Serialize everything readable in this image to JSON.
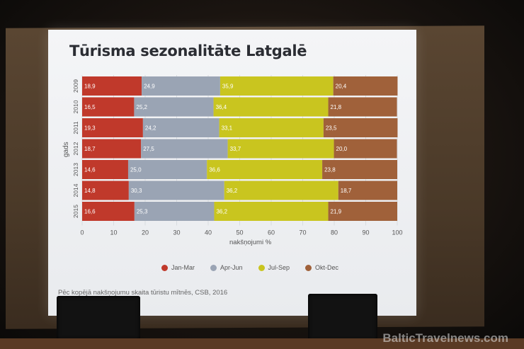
{
  "title": "Tūrisma sezonalitāte Latgalē",
  "source_note": "Pēc kopējā nakšņojumu skaita tūristu mītnēs, CSB, 2016",
  "watermark": "BalticTravelnews.com",
  "chart_data": {
    "type": "bar",
    "orientation": "horizontal",
    "stacked": true,
    "categories": [
      "2009",
      "2010",
      "2011",
      "2012",
      "2013",
      "2014",
      "2015"
    ],
    "series": [
      {
        "name": "Jan-Mar",
        "color": "#c0392b",
        "values": [
          18.9,
          16.5,
          19.3,
          18.7,
          14.6,
          14.8,
          16.6
        ],
        "labels": [
          "18,9",
          "16,5",
          "19,3",
          "18,7",
          "14,6",
          "14,8",
          "16,6"
        ]
      },
      {
        "name": "Apr-Jun",
        "color": "#9aa4b4",
        "values": [
          24.9,
          25.2,
          24.2,
          27.5,
          25.0,
          30.3,
          25.3
        ],
        "labels": [
          "24,9",
          "25,2",
          "24,2",
          "27,5",
          "25,0",
          "30,3",
          "25,3"
        ]
      },
      {
        "name": "Jul-Sep",
        "color": "#c9c51f",
        "values": [
          35.9,
          36.4,
          33.1,
          33.7,
          36.6,
          36.2,
          36.2
        ],
        "labels": [
          "35,9",
          "36,4",
          "33,1",
          "33,7",
          "36,6",
          "36,2",
          "36,2"
        ]
      },
      {
        "name": "Okt-Dec",
        "color": "#a0613a",
        "values": [
          20.4,
          21.8,
          23.5,
          20.0,
          23.8,
          18.7,
          21.9
        ],
        "labels": [
          "20,4",
          "21,8",
          "23,5",
          "20,0",
          "23,8",
          "18,7",
          "21,9"
        ]
      }
    ],
    "xlabel": "nakšņojumi %",
    "ylabel": "gads",
    "xlim": [
      0,
      100
    ],
    "xticks": [
      "0",
      "10",
      "20",
      "30",
      "40",
      "50",
      "60",
      "70",
      "80",
      "90",
      "100"
    ],
    "grid": true,
    "legend": "bottom"
  }
}
